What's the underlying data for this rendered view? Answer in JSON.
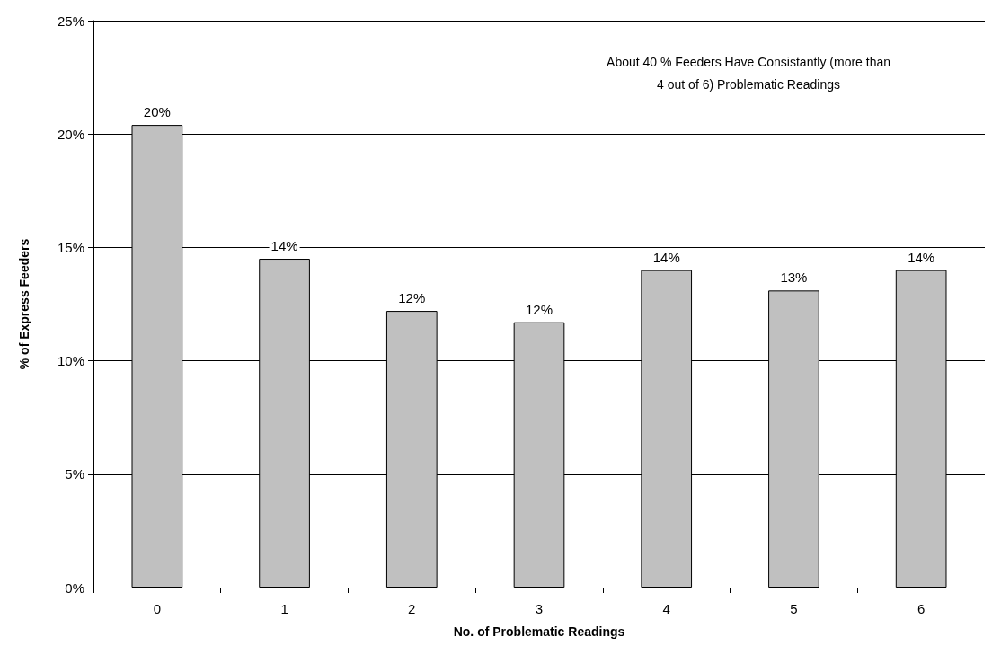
{
  "chart_data": {
    "type": "bar",
    "xlabel": "No. of Problematic Readings",
    "ylabel": "% of Express Feeders",
    "categories": [
      "0",
      "1",
      "2",
      "3",
      "4",
      "5",
      "6"
    ],
    "values": [
      20.4,
      14.5,
      12.2,
      11.7,
      14.0,
      13.1,
      14.0
    ],
    "value_labels": [
      "20%",
      "14%",
      "12%",
      "12%",
      "14%",
      "13%",
      "14%"
    ],
    "color": "#c0c0c0",
    "ylim": [
      0,
      25
    ],
    "yticks": [
      {
        "value": 0,
        "label": "0%"
      },
      {
        "value": 5,
        "label": "5%"
      },
      {
        "value": 10,
        "label": "10%"
      },
      {
        "value": 15,
        "label": "15%"
      },
      {
        "value": 20,
        "label": "20%"
      },
      {
        "value": 25,
        "label": "25%"
      }
    ],
    "grid": "y",
    "annotations": [
      "About 40 % Feeders Have Consistantly (more than\n4 out of 6) Problematic Readings"
    ]
  }
}
